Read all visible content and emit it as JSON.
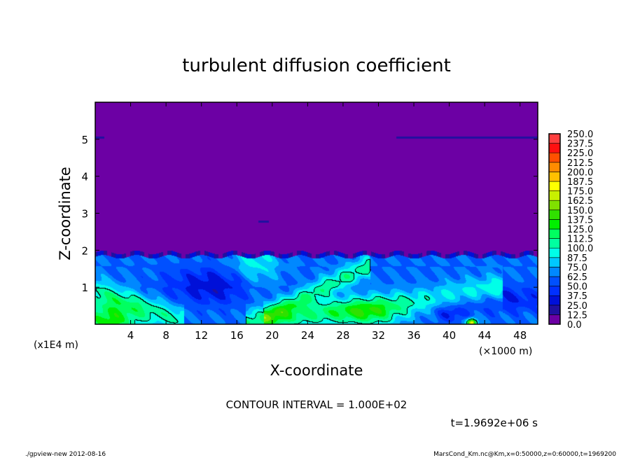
{
  "chart_data": {
    "type": "heatmap",
    "title": "turbulent diffusion coefficient",
    "xlabel": "X-coordinate",
    "ylabel": "Z-coordinate",
    "x_unit_label": "(×1000 m)",
    "y_unit_label": "(x1E4 m)",
    "xlim": [
      0,
      50
    ],
    "ylim": [
      0,
      6
    ],
    "x_ticks": [
      4,
      8,
      12,
      16,
      20,
      24,
      28,
      32,
      36,
      40,
      44,
      48
    ],
    "y_ticks": [
      1,
      2,
      3,
      4,
      5
    ],
    "colorbar": {
      "levels": [
        "0.0",
        "12.5",
        "25.0",
        "37.5",
        "50.0",
        "62.5",
        "75.0",
        "87.5",
        "100.0",
        "112.5",
        "125.0",
        "137.5",
        "150.0",
        "162.5",
        "175.0",
        "187.5",
        "200.0",
        "212.5",
        "225.0",
        "237.5",
        "250.0"
      ],
      "colors": [
        "#6c00a4",
        "#2010a0",
        "#0010d8",
        "#0030ff",
        "#0050ff",
        "#0088ff",
        "#00c8ff",
        "#00ffe8",
        "#00ffa0",
        "#00ff60",
        "#00f000",
        "#30e000",
        "#80e000",
        "#c8f000",
        "#ffff00",
        "#ffc000",
        "#ff8c00",
        "#ff5000",
        "#ff1010",
        "#ff4040"
      ]
    },
    "contour_interval_label": "CONTOUR INTERVAL = 1.000E+02",
    "time_label": "t=1.9692e+06 s"
  },
  "footer": {
    "left": "./gpview-new  2012-08-16",
    "right": "MarsCond_Km.nc@Km,x=0:50000,z=0:60000,t=1969200"
  }
}
